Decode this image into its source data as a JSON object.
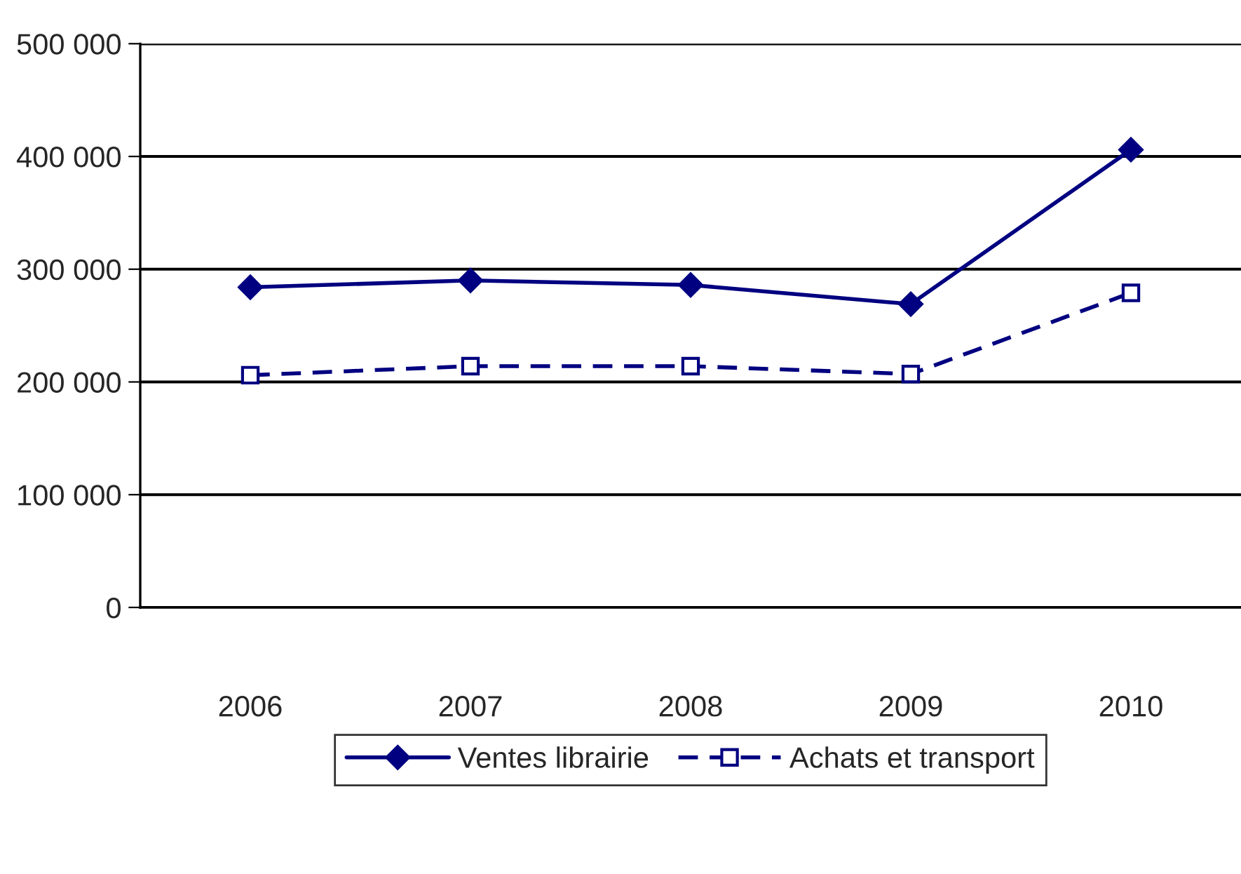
{
  "chart_data": {
    "type": "line",
    "categories": [
      "2006",
      "2007",
      "2008",
      "2009",
      "2010"
    ],
    "series": [
      {
        "name": "Ventes librairie",
        "color": "#000080",
        "values": [
          284000,
          290000,
          286000,
          269000,
          406000
        ],
        "marker": "diamond",
        "line_style": "solid"
      },
      {
        "name": "Achats et transport",
        "color": "#000080",
        "values": [
          206000,
          214000,
          214000,
          207000,
          279000
        ],
        "marker": "square",
        "line_style": "dashed"
      }
    ],
    "ylim": [
      0,
      500000
    ],
    "yticks": [
      0,
      {
        "value": 100000,
        "label": "100 000"
      },
      {
        "value": 200000,
        "label": "200 000"
      },
      {
        "value": 300000,
        "label": "300 000"
      },
      {
        "value": 400000,
        "label": "400 000"
      },
      {
        "value": 500000,
        "label": "500 000"
      }
    ],
    "grid": "y",
    "legend": "bottom"
  }
}
